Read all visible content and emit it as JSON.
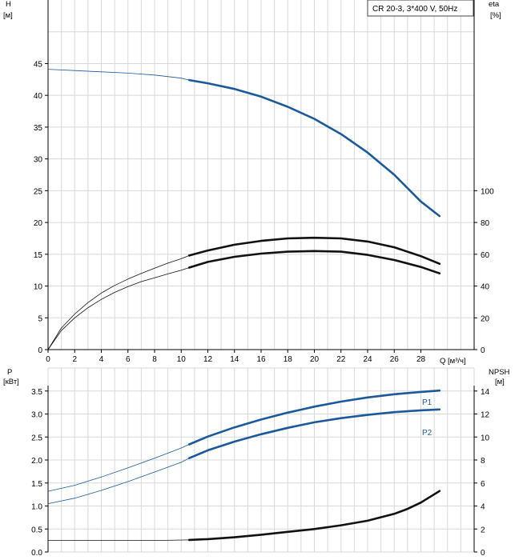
{
  "chart_data": {
    "type": "line",
    "title": "CR 20-3, 3*400 V, 50Hz",
    "x_axis": {
      "label": "Q [м³/ч]",
      "ticks": [
        0,
        2,
        4,
        6,
        8,
        10,
        12,
        14,
        16,
        18,
        20,
        22,
        24,
        26,
        28
      ],
      "range": [
        0,
        32
      ],
      "grid": true
    },
    "top_panel": {
      "y_left": {
        "label": "H",
        "unit": "[м]",
        "ticks": [
          0,
          5,
          10,
          15,
          20,
          25,
          30,
          35,
          40,
          45
        ],
        "range": [
          0,
          55
        ]
      },
      "y_right": {
        "label": "eta",
        "unit": "[%]",
        "ticks": [
          0,
          20,
          40,
          60,
          80,
          100
        ],
        "range": [
          0,
          100
        ]
      },
      "series": [
        {
          "axis": "left",
          "color": "#1a5a9a",
          "style": "thin-then-thick",
          "operating_from_x": 10.6,
          "points": [
            [
              0,
              44.1
            ],
            [
              2,
              43.9
            ],
            [
              4,
              43.7
            ],
            [
              6,
              43.5
            ],
            [
              8,
              43.2
            ],
            [
              10,
              42.7
            ],
            [
              10.6,
              42.4
            ],
            [
              12,
              41.9
            ],
            [
              14,
              41.0
            ],
            [
              16,
              39.8
            ],
            [
              18,
              38.2
            ],
            [
              20,
              36.3
            ],
            [
              22,
              33.9
            ],
            [
              24,
              31.0
            ],
            [
              26,
              27.5
            ],
            [
              28,
              23.3
            ],
            [
              29.4,
              21.0
            ]
          ]
        },
        {
          "axis": "left",
          "color": "#111111",
          "style": "thin-then-thick",
          "operating_from_x": 10.6,
          "points": [
            [
              0,
              0
            ],
            [
              1,
              3.4
            ],
            [
              2,
              5.6
            ],
            [
              3,
              7.4
            ],
            [
              4,
              8.9
            ],
            [
              5,
              10.1
            ],
            [
              6,
              11.1
            ],
            [
              7,
              12.0
            ],
            [
              8,
              12.8
            ],
            [
              9,
              13.6
            ],
            [
              10,
              14.3
            ],
            [
              10.6,
              14.8
            ],
            [
              12,
              15.6
            ],
            [
              14,
              16.5
            ],
            [
              16,
              17.1
            ],
            [
              18,
              17.5
            ],
            [
              20,
              17.6
            ],
            [
              22,
              17.5
            ],
            [
              24,
              17.0
            ],
            [
              26,
              16.1
            ],
            [
              28,
              14.7
            ],
            [
              29.4,
              13.5
            ]
          ]
        },
        {
          "axis": "left",
          "color": "#111111",
          "style": "thin-then-thick",
          "operating_from_x": 10.6,
          "points": [
            [
              0,
              0
            ],
            [
              1,
              3.0
            ],
            [
              2,
              5.0
            ],
            [
              3,
              6.6
            ],
            [
              4,
              7.9
            ],
            [
              5,
              9.0
            ],
            [
              6,
              9.9
            ],
            [
              7,
              10.7
            ],
            [
              8,
              11.3
            ],
            [
              9,
              11.9
            ],
            [
              10,
              12.5
            ],
            [
              10.6,
              12.9
            ],
            [
              12,
              13.8
            ],
            [
              14,
              14.6
            ],
            [
              16,
              15.1
            ],
            [
              18,
              15.4
            ],
            [
              20,
              15.5
            ],
            [
              22,
              15.4
            ],
            [
              24,
              14.9
            ],
            [
              26,
              14.1
            ],
            [
              28,
              13.0
            ],
            [
              29.4,
              12.0
            ]
          ]
        }
      ]
    },
    "bottom_panel": {
      "y_left": {
        "label": "P",
        "unit": "[кВт]",
        "ticks": [
          "0.0",
          "0.5",
          "1.0",
          "1.5",
          "2.0",
          "2.5",
          "3.0",
          "3.5"
        ],
        "range": [
          0,
          4
        ]
      },
      "y_right": {
        "label": "NPSH",
        "unit": "[м]",
        "ticks": [
          0,
          2,
          4,
          6,
          8,
          10,
          12,
          14
        ],
        "range": [
          0,
          16
        ]
      },
      "series": [
        {
          "name": "P1",
          "axis": "left",
          "color": "#1a5a9a",
          "style": "thin-then-thick",
          "operating_from_x": 10.6,
          "points": [
            [
              0,
              1.32
            ],
            [
              2,
              1.45
            ],
            [
              4,
              1.63
            ],
            [
              6,
              1.83
            ],
            [
              8,
              2.04
            ],
            [
              10,
              2.26
            ],
            [
              10.6,
              2.34
            ],
            [
              12,
              2.51
            ],
            [
              14,
              2.71
            ],
            [
              16,
              2.88
            ],
            [
              18,
              3.03
            ],
            [
              20,
              3.16
            ],
            [
              22,
              3.27
            ],
            [
              24,
              3.36
            ],
            [
              26,
              3.43
            ],
            [
              28,
              3.48
            ],
            [
              29.4,
              3.51
            ]
          ]
        },
        {
          "name": "P2",
          "axis": "left",
          "color": "#1a5a9a",
          "style": "thin-then-thick",
          "operating_from_x": 10.6,
          "points": [
            [
              0,
              1.05
            ],
            [
              2,
              1.17
            ],
            [
              4,
              1.34
            ],
            [
              6,
              1.53
            ],
            [
              8,
              1.74
            ],
            [
              10,
              1.95
            ],
            [
              10.6,
              2.04
            ],
            [
              12,
              2.21
            ],
            [
              14,
              2.4
            ],
            [
              16,
              2.56
            ],
            [
              18,
              2.7
            ],
            [
              20,
              2.82
            ],
            [
              22,
              2.91
            ],
            [
              24,
              2.98
            ],
            [
              26,
              3.04
            ],
            [
              28,
              3.08
            ],
            [
              29.4,
              3.1
            ]
          ]
        },
        {
          "axis": "right",
          "color": "#111111",
          "style": "thin-then-thick",
          "operating_from_x": 10.6,
          "points": [
            [
              0,
              1.0
            ],
            [
              4,
              1.0
            ],
            [
              8,
              1.0
            ],
            [
              10.6,
              1.05
            ],
            [
              12,
              1.12
            ],
            [
              14,
              1.28
            ],
            [
              16,
              1.5
            ],
            [
              18,
              1.75
            ],
            [
              20,
              2.0
            ],
            [
              22,
              2.32
            ],
            [
              24,
              2.72
            ],
            [
              26,
              3.32
            ],
            [
              27,
              3.75
            ],
            [
              28,
              4.3
            ],
            [
              29.4,
              5.3
            ]
          ]
        }
      ]
    }
  }
}
